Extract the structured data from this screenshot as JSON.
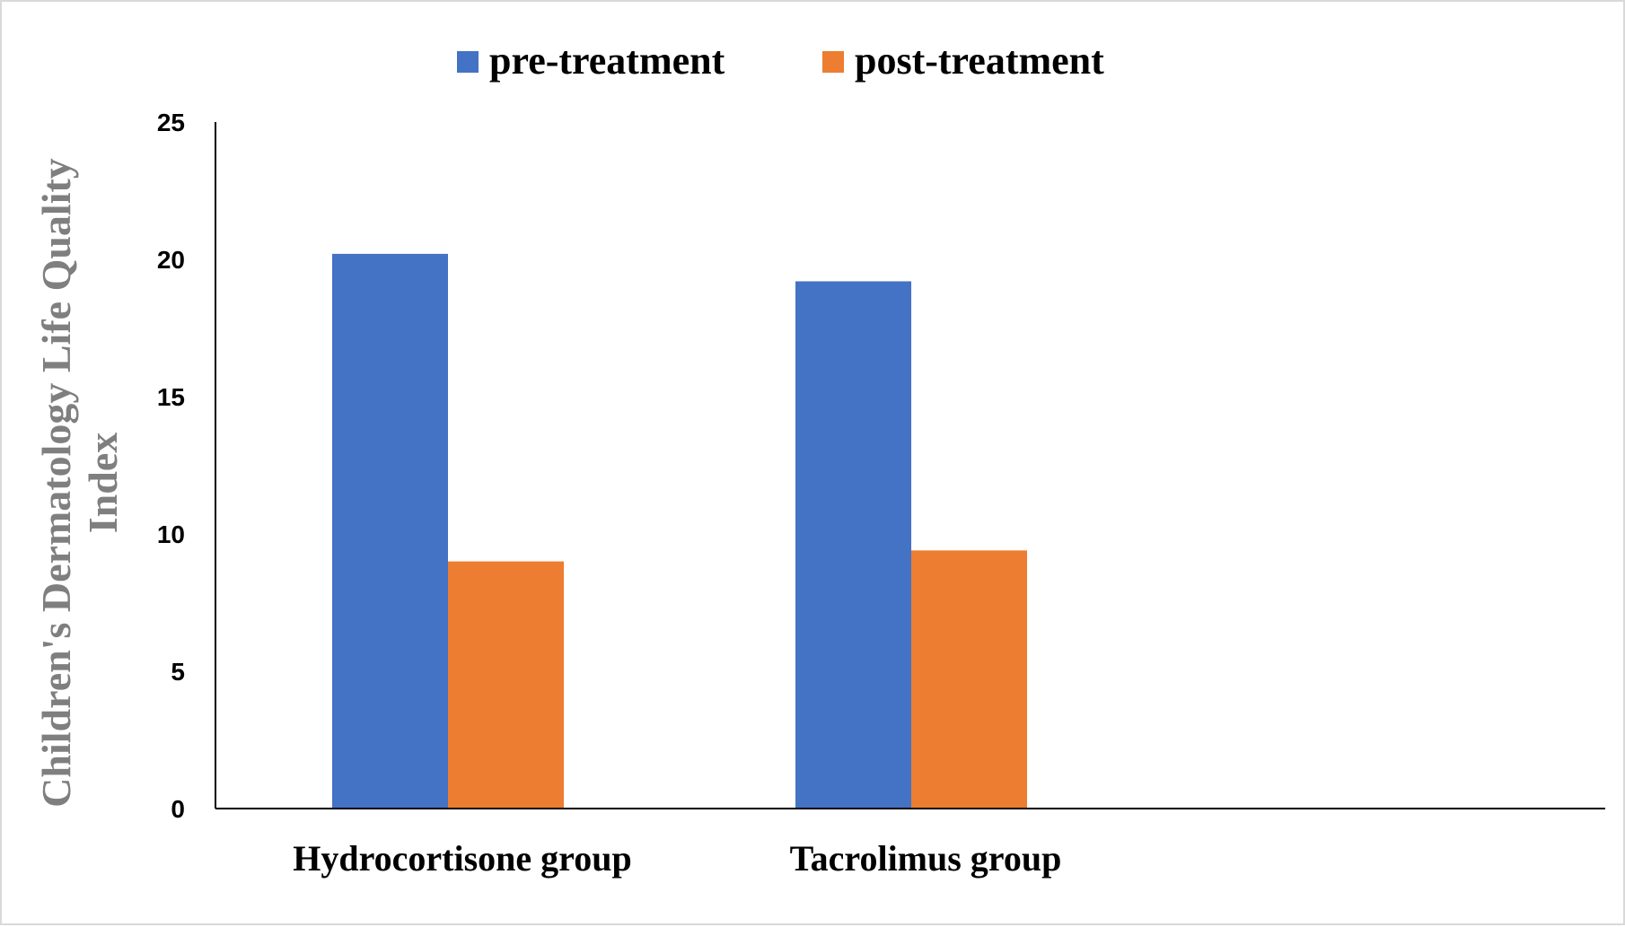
{
  "chart_data": {
    "type": "bar",
    "categories": [
      "Hydrocortisone group",
      "Tacrolimus group"
    ],
    "series": [
      {
        "name": "pre-treatment",
        "values": [
          20.2,
          19.2
        ],
        "color": "#4472c4"
      },
      {
        "name": "post-treatment",
        "values": [
          9.0,
          9.4
        ],
        "color": "#ed7d31"
      }
    ],
    "ylabel_lines": [
      "Children's Dermatology Life Quality",
      "Index"
    ],
    "ylim": [
      0,
      25
    ],
    "yticks": [
      0,
      5,
      10,
      15,
      20,
      25
    ],
    "grid": false,
    "legend_position": "top-center"
  }
}
